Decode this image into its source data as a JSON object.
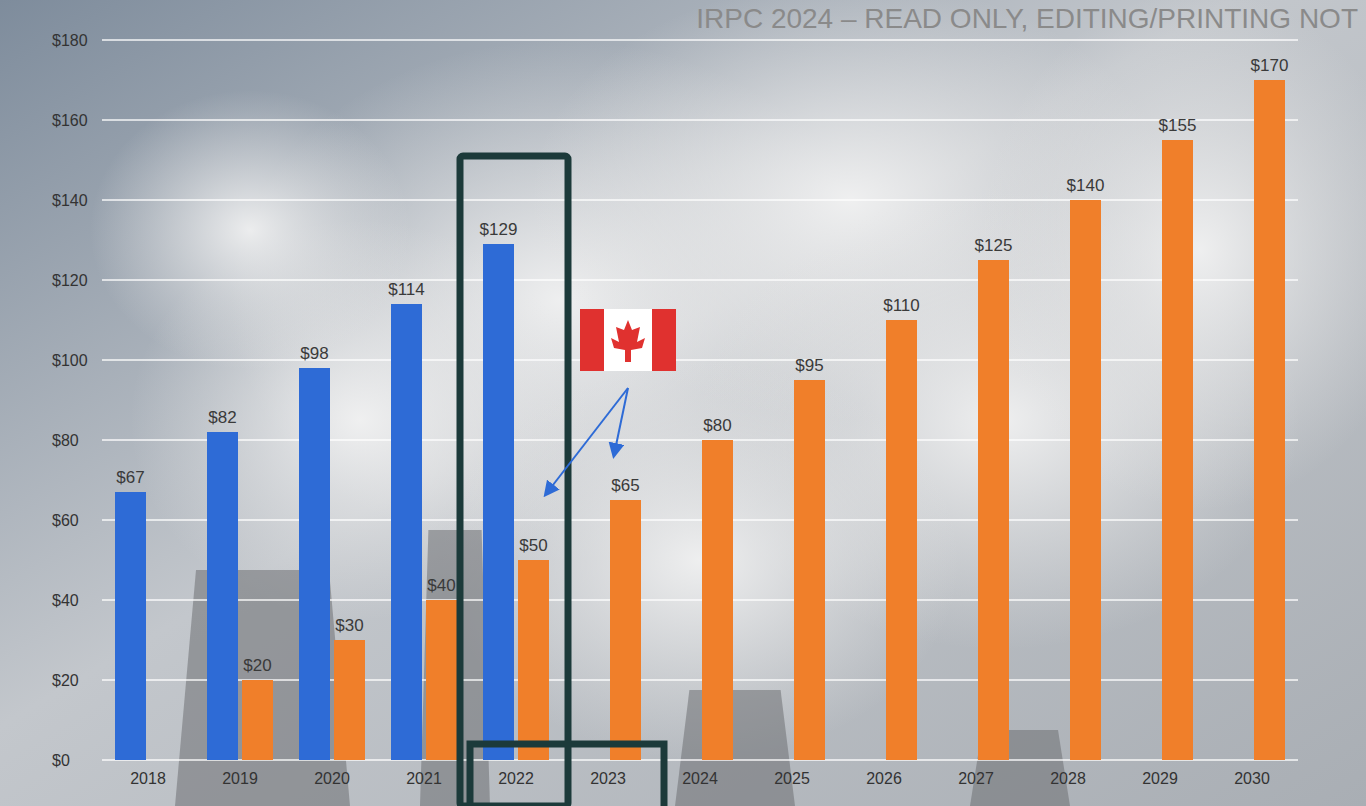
{
  "chart_data": {
    "type": "bar",
    "categories": [
      "2018",
      "2019",
      "2020",
      "2021",
      "2022",
      "2023",
      "2024",
      "2025",
      "2026",
      "2027",
      "2028",
      "2029",
      "2030"
    ],
    "series": [
      {
        "color": "#2e6bd6",
        "values": [
          67,
          82,
          98,
          114,
          129,
          null,
          null,
          null,
          null,
          null,
          null,
          null,
          null
        ],
        "value_labels": [
          "$67",
          "$82",
          "$98",
          "$114",
          "$129",
          null,
          null,
          null,
          null,
          null,
          null,
          null,
          null
        ]
      },
      {
        "color": "#f07f2a",
        "values": [
          null,
          20,
          30,
          40,
          50,
          65,
          80,
          95,
          110,
          125,
          140,
          155,
          170
        ],
        "value_labels": [
          null,
          "$20",
          "$30",
          "$40",
          "$50",
          "$65",
          "$80",
          "$95",
          "$110",
          "$125",
          "$140",
          "$155",
          "$170"
        ]
      }
    ],
    "ylim": [
      0,
      180
    ],
    "yticks": [
      {
        "value": 0,
        "label": "$0"
      },
      {
        "value": 20,
        "label": "$20"
      },
      {
        "value": 40,
        "label": "$40"
      },
      {
        "value": 60,
        "label": "$60"
      },
      {
        "value": 80,
        "label": "$80"
      },
      {
        "value": 100,
        "label": "$100"
      },
      {
        "value": 120,
        "label": "$120"
      },
      {
        "value": 140,
        "label": "$140"
      },
      {
        "value": 160,
        "label": "$160"
      },
      {
        "value": 180,
        "label": "$180"
      }
    ],
    "grid": true,
    "data_labels": true,
    "annotations": [
      "IRPC 2024 – READ ONLY, EDITING/PRINTING NOT"
    ]
  }
}
